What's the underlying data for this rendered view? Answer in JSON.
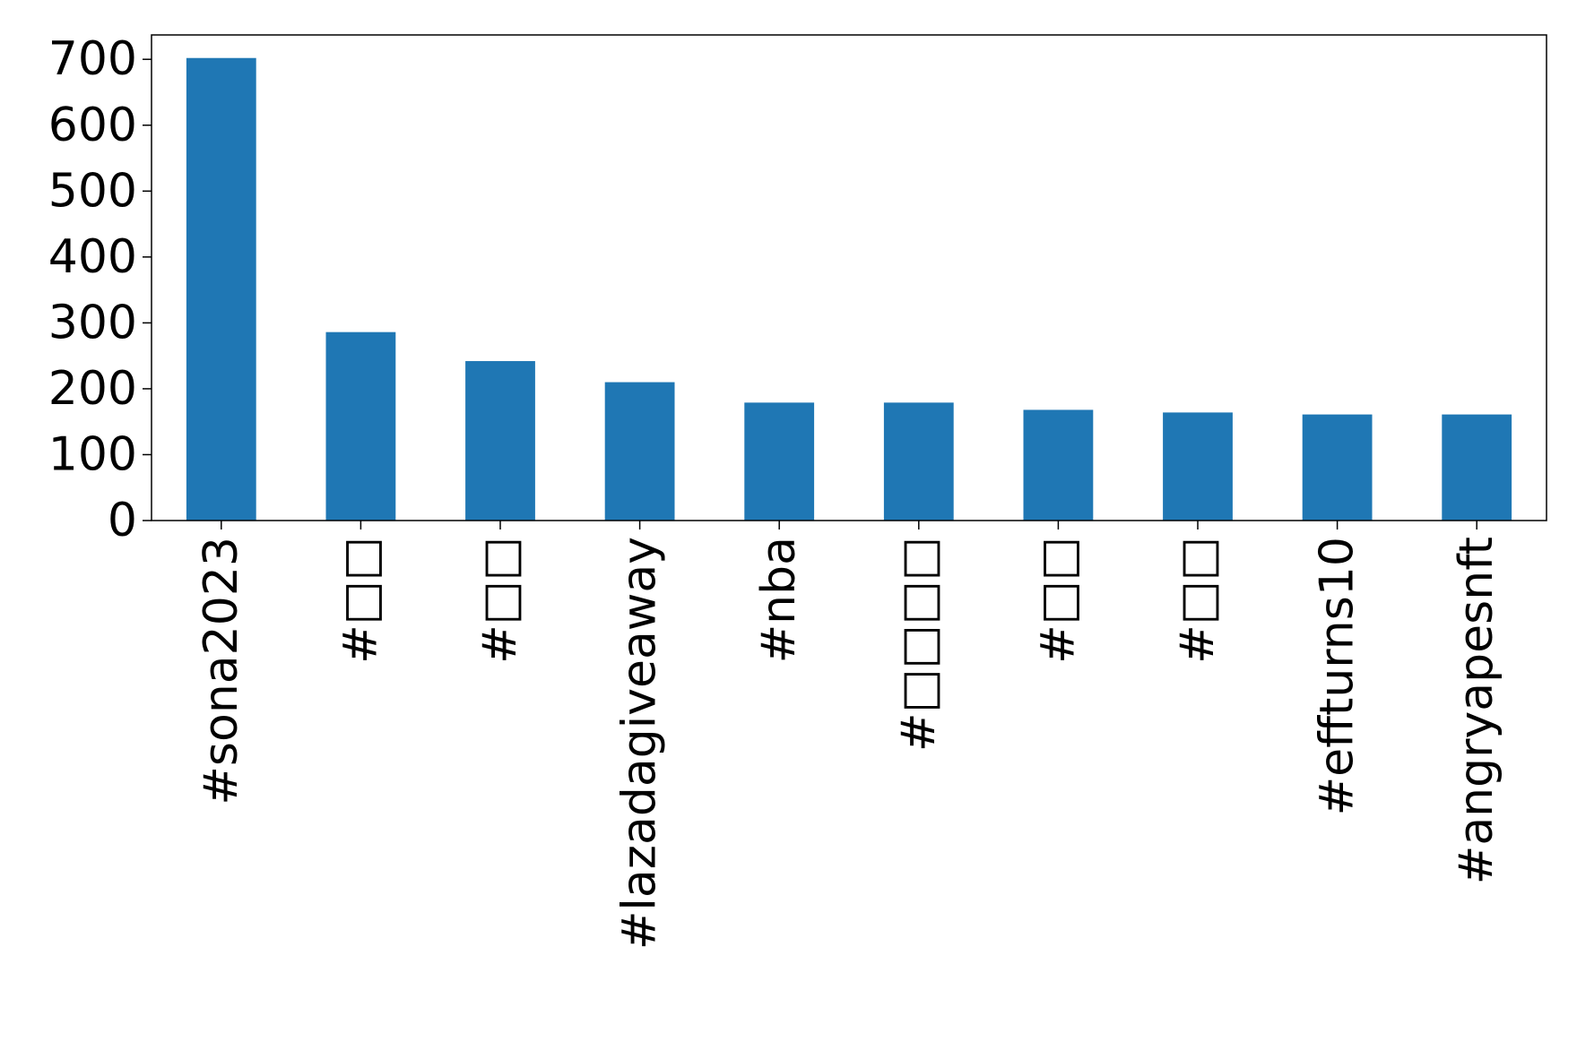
{
  "chart_data": {
    "type": "bar",
    "title": "",
    "xlabel": "",
    "ylabel": "",
    "categories": [
      "#sona2023",
      "#□□",
      "#□□",
      "#lazadagiveaway",
      "#nba",
      "#□□□□",
      "#□□",
      "#□□",
      "#effturns10",
      "#angryapesnft"
    ],
    "values": [
      702,
      286,
      242,
      210,
      179,
      179,
      168,
      164,
      161,
      161
    ],
    "ylim": [
      0,
      737
    ],
    "yticks": [
      0,
      100,
      200,
      300,
      400,
      500,
      600,
      700
    ],
    "grid": false,
    "legend": "none",
    "bar_color": "#1f77b4"
  }
}
